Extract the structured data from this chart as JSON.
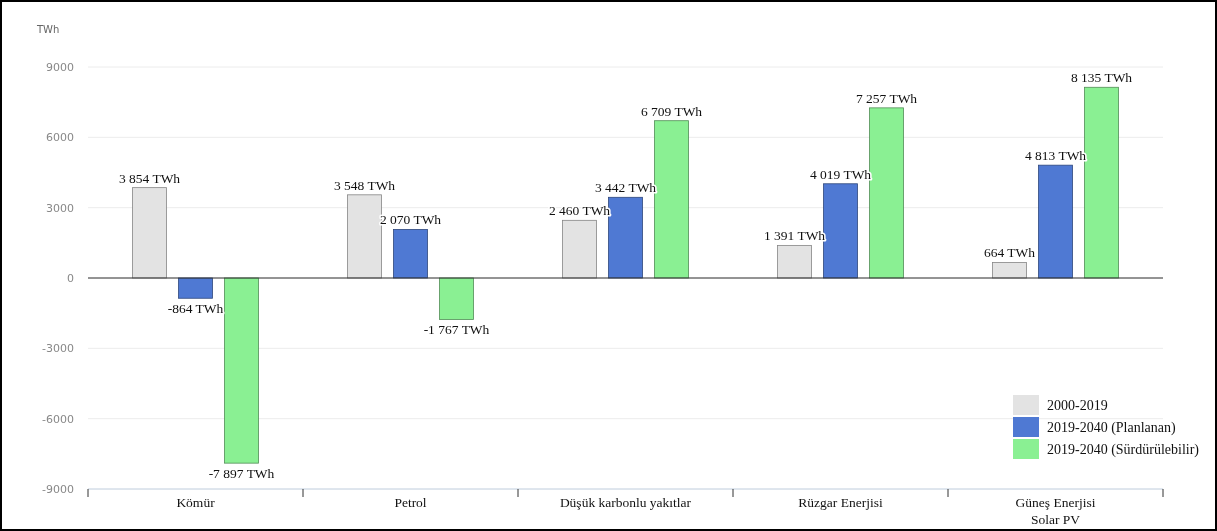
{
  "chart_data": {
    "type": "bar",
    "ylabel": "TWh",
    "categories": [
      "Kömür",
      "Petrol",
      "Düşük karbonlu yakıtlar",
      "Rüzgar Enerjisi",
      "Güneş Enerjisi\nSolar PV"
    ],
    "series": [
      {
        "name": "2000-2019",
        "color": "#e3e3e3",
        "values": [
          3854,
          3548,
          2460,
          1391,
          664
        ],
        "value_labels": [
          "3 854 TWh",
          "3 548 TWh",
          "2 460 TWh",
          "1 391 TWh",
          "664 TWh"
        ]
      },
      {
        "name": "2019-2040 (Planlanan)",
        "color": "#4f79d3",
        "values": [
          -864,
          2070,
          3442,
          4019,
          4813
        ],
        "value_labels": [
          "-864 TWh",
          "2 070 TWh",
          "3 442 TWh",
          "4 019 TWh",
          "4 813 TWh"
        ]
      },
      {
        "name": "2019-2040 (Sürdürülebilir)",
        "color": "#8af093",
        "values": [
          -7897,
          -1767,
          6709,
          7257,
          8135
        ],
        "value_labels": [
          "-7 897 TWh",
          "-1 767 TWh",
          "6 709 TWh",
          "7 257 TWh",
          "8 135 TWh"
        ]
      }
    ],
    "ylim": [
      -9000,
      9000
    ],
    "yticks": [
      -9000,
      -6000,
      -3000,
      0,
      3000,
      6000,
      9000
    ],
    "grid": "y",
    "legend": "bottom right"
  }
}
